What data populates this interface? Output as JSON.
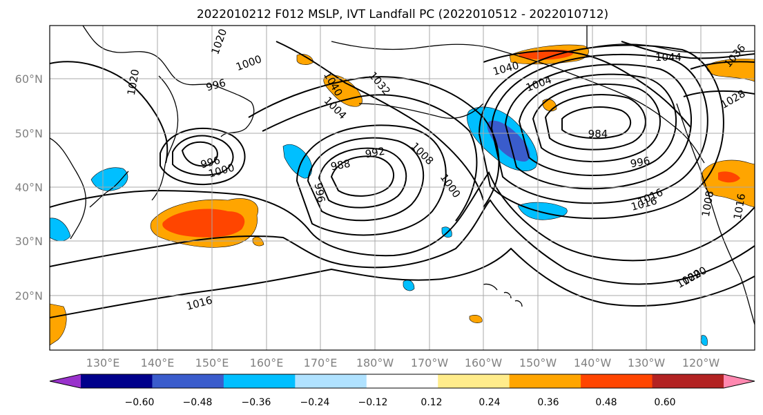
{
  "title": "2022010212 F012 MSLP, IVT Landfall PC (2022010512 - 2022010712)",
  "lat_labels": [
    "20°N",
    "30°N",
    "40°N",
    "50°N",
    "60°N"
  ],
  "lon_labels": [
    "130°E",
    "140°E",
    "150°E",
    "160°E",
    "170°E",
    "180°W",
    "170°W",
    "160°W",
    "150°W",
    "140°W",
    "130°W",
    "120°W"
  ],
  "colorbar": {
    "colors": [
      "#9932cc",
      "#00008b",
      "#3a5ccc",
      "#00bfff",
      "#b0e2ff",
      "#ffffff",
      "#ffec8b",
      "#ffa500",
      "#ff4500",
      "#b22222",
      "#ff88b0"
    ],
    "tick_labels": [
      "−0.60",
      "−0.48",
      "−0.36",
      "−0.24",
      "−0.12",
      "0.12",
      "0.24",
      "0.36",
      "0.48",
      "0.60"
    ]
  },
  "mslp_labels": [
    "1020",
    "1020",
    "1000",
    "996",
    "1016",
    "1016",
    "1020",
    "1032",
    "1040",
    "1004",
    "1008",
    "1000",
    "992",
    "988",
    "996",
    "996",
    "1000",
    "1040",
    "1004",
    "984",
    "996",
    "1016",
    "1020",
    "1044",
    "1036",
    "1028",
    "1016",
    "1008"
  ],
  "colors": {
    "grid": "#a8a8a8",
    "tick_label": "#808080"
  }
}
